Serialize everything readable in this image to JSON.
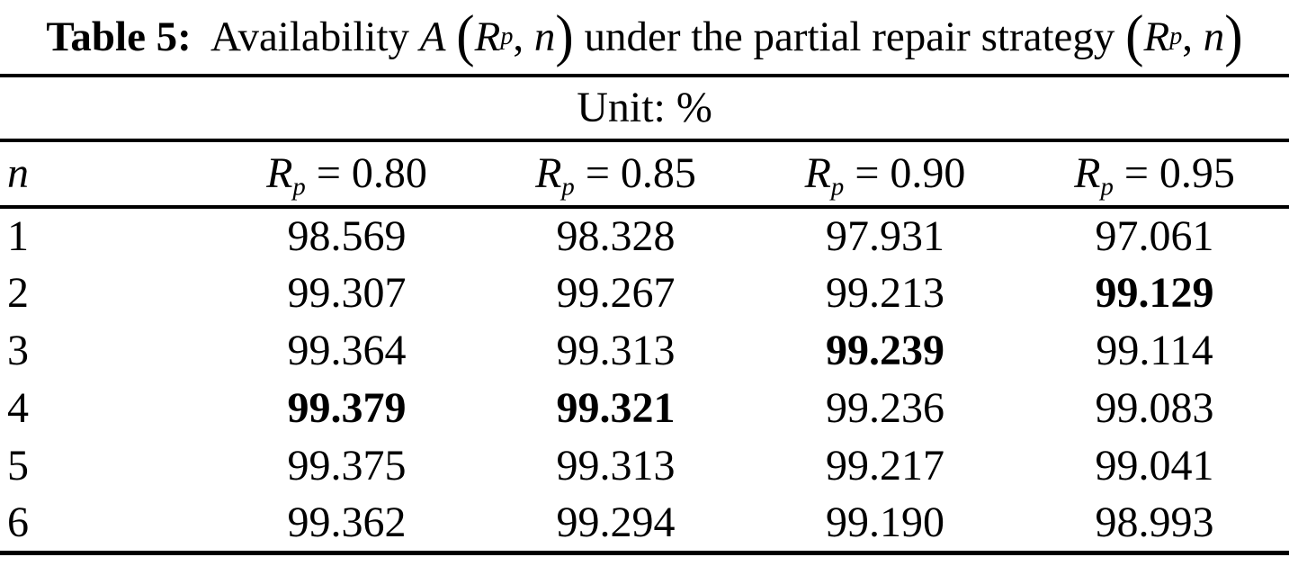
{
  "figure": {
    "caption_parts": [
      {
        "t": "Table 5:",
        "s": "bold"
      },
      {
        "t": "Availability ",
        "s": "normal"
      },
      {
        "t": "A",
        "s": "italic"
      },
      {
        "t": " ",
        "s": "normal"
      },
      {
        "t": "(",
        "s": "paren"
      },
      {
        "t": "R",
        "s": "italic"
      },
      {
        "t": "p",
        "s": "sub"
      },
      {
        "t": ", ",
        "s": "normal"
      },
      {
        "t": "n",
        "s": "italic"
      },
      {
        "t": ")",
        "s": "paren"
      },
      {
        "t": " under the partial repair strategy ",
        "s": "normal"
      },
      {
        "t": "(",
        "s": "paren"
      },
      {
        "t": "R",
        "s": "italic"
      },
      {
        "t": "p",
        "s": "sub"
      },
      {
        "t": ", ",
        "s": "normal"
      },
      {
        "t": "n",
        "s": "italic"
      },
      {
        "t": ")",
        "s": "paren"
      }
    ],
    "table": {
      "unit": "Unit: %",
      "columns": [
        {
          "key": "n",
          "parts": [
            {
              "t": "n",
              "s": "italic"
            }
          ]
        },
        {
          "key": "rp-0.80",
          "parts": [
            {
              "t": "R",
              "s": "italic"
            },
            {
              "t": "p",
              "s": "sub"
            },
            {
              "t": " = 0.80",
              "s": "normal"
            }
          ]
        },
        {
          "key": "rp-0.85",
          "parts": [
            {
              "t": "R",
              "s": "italic"
            },
            {
              "t": "p",
              "s": "sub"
            },
            {
              "t": " = 0.85",
              "s": "normal"
            }
          ]
        },
        {
          "key": "rp-0.90",
          "parts": [
            {
              "t": "R",
              "s": "italic"
            },
            {
              "t": "p",
              "s": "sub"
            },
            {
              "t": " = 0.90",
              "s": "normal"
            }
          ]
        },
        {
          "key": "rp-0.95",
          "parts": [
            {
              "t": "R",
              "s": "italic"
            },
            {
              "t": "p",
              "s": "sub"
            },
            {
              "t": " = 0.95",
              "s": "normal"
            }
          ]
        }
      ],
      "rows": [
        {
          "n": "1",
          "cells": [
            {
              "v": "98.569",
              "bold": false
            },
            {
              "v": "98.328",
              "bold": false
            },
            {
              "v": "97.931",
              "bold": false
            },
            {
              "v": "97.061",
              "bold": false
            }
          ]
        },
        {
          "n": "2",
          "cells": [
            {
              "v": "99.307",
              "bold": false
            },
            {
              "v": "99.267",
              "bold": false
            },
            {
              "v": "99.213",
              "bold": false
            },
            {
              "v": "99.129",
              "bold": true
            }
          ]
        },
        {
          "n": "3",
          "cells": [
            {
              "v": "99.364",
              "bold": false
            },
            {
              "v": "99.313",
              "bold": false
            },
            {
              "v": "99.239",
              "bold": true
            },
            {
              "v": "99.114",
              "bold": false
            }
          ]
        },
        {
          "n": "4",
          "cells": [
            {
              "v": "99.379",
              "bold": true
            },
            {
              "v": "99.321",
              "bold": true
            },
            {
              "v": "99.236",
              "bold": false
            },
            {
              "v": "99.083",
              "bold": false
            }
          ]
        },
        {
          "n": "5",
          "cells": [
            {
              "v": "99.375",
              "bold": false
            },
            {
              "v": "99.313",
              "bold": false
            },
            {
              "v": "99.217",
              "bold": false
            },
            {
              "v": "99.041",
              "bold": false
            }
          ]
        },
        {
          "n": "6",
          "cells": [
            {
              "v": "99.362",
              "bold": false
            },
            {
              "v": "99.294",
              "bold": false
            },
            {
              "v": "99.190",
              "bold": false
            },
            {
              "v": "98.993",
              "bold": false
            }
          ]
        }
      ]
    }
  },
  "colors": {
    "text": "#000000",
    "background": "#ffffff",
    "rule": "#000000"
  }
}
